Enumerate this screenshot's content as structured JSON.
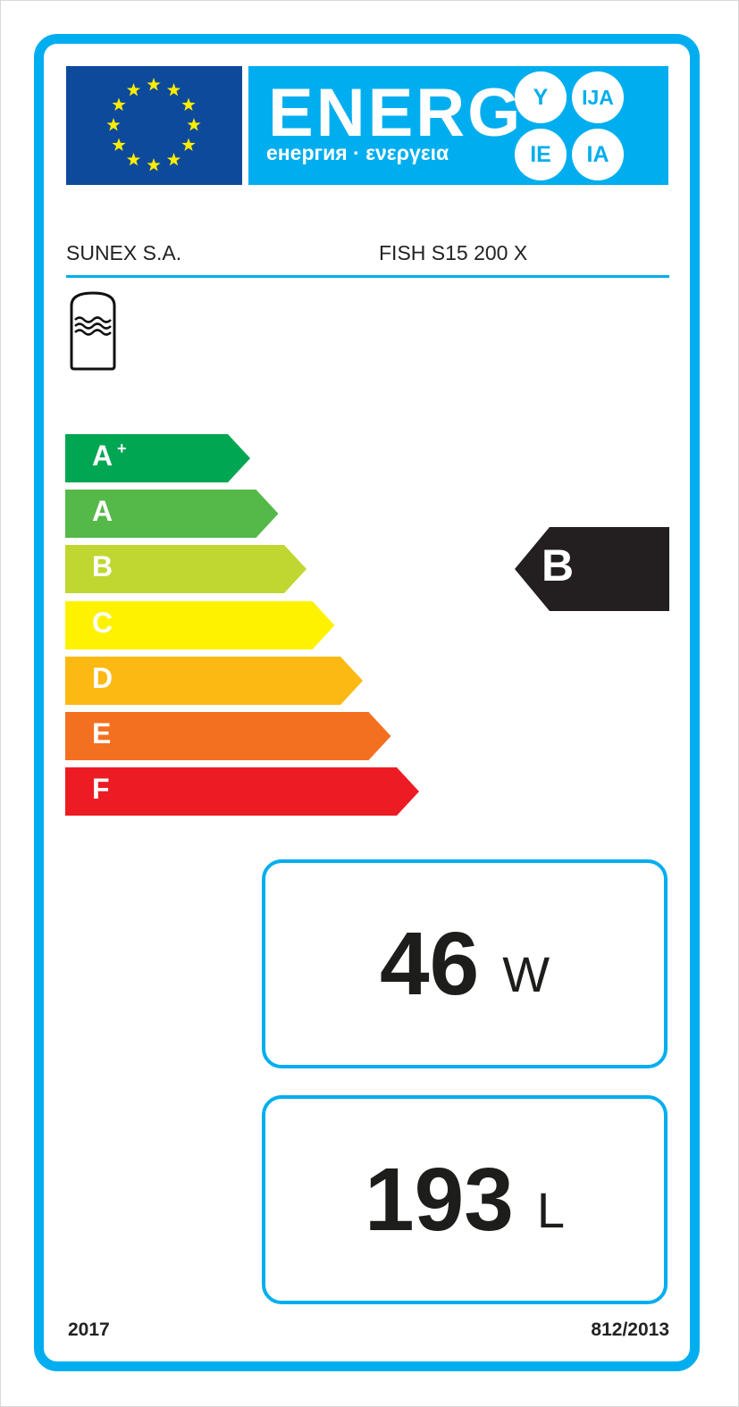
{
  "header": {
    "energy_word": "ENERG",
    "energy_subtitle": "енергия · ενεργεια",
    "language_suffixes": [
      "Y",
      "IJA",
      "IE",
      "IA"
    ],
    "eu_flag_icon": "eu-flag-icon"
  },
  "supplier": "SUNEX S.A.",
  "model": "FISH S15 200 X",
  "product_icon": "hot-water-storage-tank-icon",
  "scale": [
    {
      "label": "A",
      "sup": "+",
      "color": "#00a651"
    },
    {
      "label": "A",
      "sup": "",
      "color": "#54b948"
    },
    {
      "label": "B",
      "sup": "",
      "color": "#bfd730"
    },
    {
      "label": "C",
      "sup": "",
      "color": "#fff200"
    },
    {
      "label": "D",
      "sup": "",
      "color": "#fdb913"
    },
    {
      "label": "E",
      "sup": "",
      "color": "#f37021"
    },
    {
      "label": "F",
      "sup": "",
      "color": "#ed1c24"
    }
  ],
  "rating": {
    "label": "B",
    "color": "#231f20"
  },
  "standing_loss": {
    "value": "46",
    "unit": "W"
  },
  "volume": {
    "value": "193",
    "unit": "L"
  },
  "footer": {
    "year": "2017",
    "regulation": "812/2013"
  },
  "colors": {
    "brand_blue": "#00aeef",
    "eu_blue": "#0d4a9c",
    "star_yellow": "#ffed00"
  }
}
